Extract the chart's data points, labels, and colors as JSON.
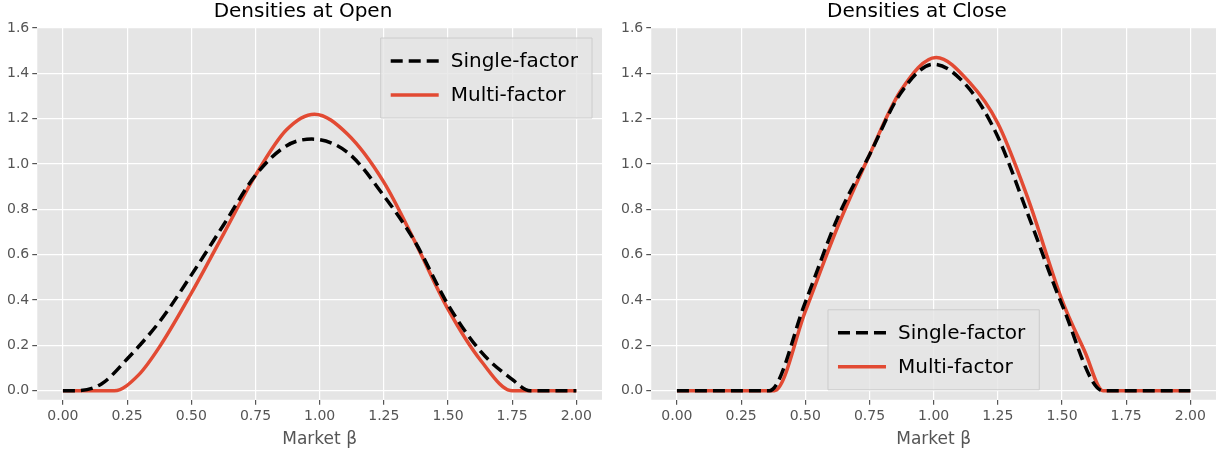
{
  "chart_data": [
    {
      "type": "line",
      "title": "Densities at Open",
      "xlabel": "Market β",
      "legend": "top right",
      "grid": true,
      "line_style": "solid",
      "xlim": [
        -0.1,
        2.1
      ],
      "ylim": [
        -0.04,
        1.6
      ],
      "xticks": [
        {
          "value": 0,
          "label": "0.00"
        },
        {
          "value": 0.25,
          "label": "0.25"
        },
        {
          "value": 0.5,
          "label": "0.50"
        },
        {
          "value": 0.75,
          "label": "0.75"
        },
        {
          "value": 1,
          "label": "1.00"
        },
        {
          "value": 1.25,
          "label": "1.25"
        },
        {
          "value": 1.5,
          "label": "1.50"
        },
        {
          "value": 1.75,
          "label": "1.75"
        },
        {
          "value": 2,
          "label": "2.00"
        }
      ],
      "yticks": [
        {
          "value": 0,
          "label": "0.0"
        },
        {
          "value": 0.2,
          "label": "0.2"
        },
        {
          "value": 0.4,
          "label": "0.4"
        },
        {
          "value": 0.6,
          "label": "0.6"
        },
        {
          "value": 0.8,
          "label": "0.8"
        },
        {
          "value": 1,
          "label": "1.0"
        },
        {
          "value": 1.2,
          "label": "1.2"
        },
        {
          "value": 1.4,
          "label": "1.4"
        },
        {
          "value": 1.6,
          "label": "1.6"
        }
      ],
      "series": [
        {
          "name": "Single-factor",
          "color": "#000000",
          "line_style": "dashed",
          "x": [
            0,
            0.05,
            0.15,
            0.25,
            0.38,
            0.5,
            0.625,
            0.75,
            0.87,
            0.97,
            1.11,
            1.25,
            1.37,
            1.5,
            1.63,
            1.75,
            1.82,
            2
          ],
          "values": [
            0,
            0,
            0.03,
            0.14,
            0.31,
            0.51,
            0.73,
            0.95,
            1.08,
            1.11,
            1.05,
            0.86,
            0.66,
            0.38,
            0.17,
            0.05,
            0,
            0
          ]
        },
        {
          "name": "Multi-factor",
          "color": "#e24a33",
          "x": [
            0,
            0.2,
            0.295,
            0.38,
            0.5,
            0.625,
            0.75,
            0.87,
            0.98,
            1.11,
            1.25,
            1.37,
            1.5,
            1.63,
            1.75,
            2
          ],
          "values": [
            0,
            0,
            0.07,
            0.2,
            0.43,
            0.69,
            0.95,
            1.15,
            1.22,
            1.13,
            0.92,
            0.66,
            0.36,
            0.13,
            0,
            0
          ]
        }
      ]
    },
    {
      "type": "line",
      "title": "Densities at Close",
      "xlabel": "Market β",
      "legend": "bottom",
      "grid": true,
      "line_style": "solid",
      "xlim": [
        -0.1,
        2.1
      ],
      "ylim": [
        -0.04,
        1.6
      ],
      "xticks": [
        {
          "value": 0,
          "label": "0.00"
        },
        {
          "value": 0.25,
          "label": "0.25"
        },
        {
          "value": 0.5,
          "label": "0.50"
        },
        {
          "value": 0.75,
          "label": "0.75"
        },
        {
          "value": 1,
          "label": "1.00"
        },
        {
          "value": 1.25,
          "label": "1.25"
        },
        {
          "value": 1.5,
          "label": "1.50"
        },
        {
          "value": 1.75,
          "label": "1.75"
        },
        {
          "value": 2,
          "label": "2.00"
        }
      ],
      "yticks": [
        {
          "value": 0,
          "label": "0.0"
        },
        {
          "value": 0.2,
          "label": "0.2"
        },
        {
          "value": 0.4,
          "label": "0.4"
        },
        {
          "value": 0.6,
          "label": "0.6"
        },
        {
          "value": 0.8,
          "label": "0.8"
        },
        {
          "value": 1,
          "label": "1.0"
        },
        {
          "value": 1.2,
          "label": "1.2"
        },
        {
          "value": 1.4,
          "label": "1.4"
        },
        {
          "value": 1.6,
          "label": "1.6"
        }
      ],
      "series": [
        {
          "name": "Single-factor",
          "color": "#000000",
          "line_style": "dashed",
          "x": [
            0,
            0.36,
            0.5,
            0.625,
            0.75,
            0.87,
            1.0,
            1.14,
            1.25,
            1.37,
            1.5,
            1.66,
            2
          ],
          "values": [
            0,
            0,
            0.39,
            0.76,
            1.04,
            1.31,
            1.44,
            1.33,
            1.12,
            0.77,
            0.38,
            0,
            0
          ]
        },
        {
          "name": "Multi-factor",
          "color": "#e24a33",
          "x": [
            0,
            0.38,
            0.5,
            0.625,
            0.75,
            0.87,
            1.01,
            1.14,
            1.25,
            1.37,
            1.5,
            1.59,
            1.66,
            2
          ],
          "values": [
            0,
            0,
            0.35,
            0.72,
            1.04,
            1.32,
            1.47,
            1.36,
            1.18,
            0.84,
            0.4,
            0.17,
            0,
            0
          ]
        }
      ]
    }
  ]
}
